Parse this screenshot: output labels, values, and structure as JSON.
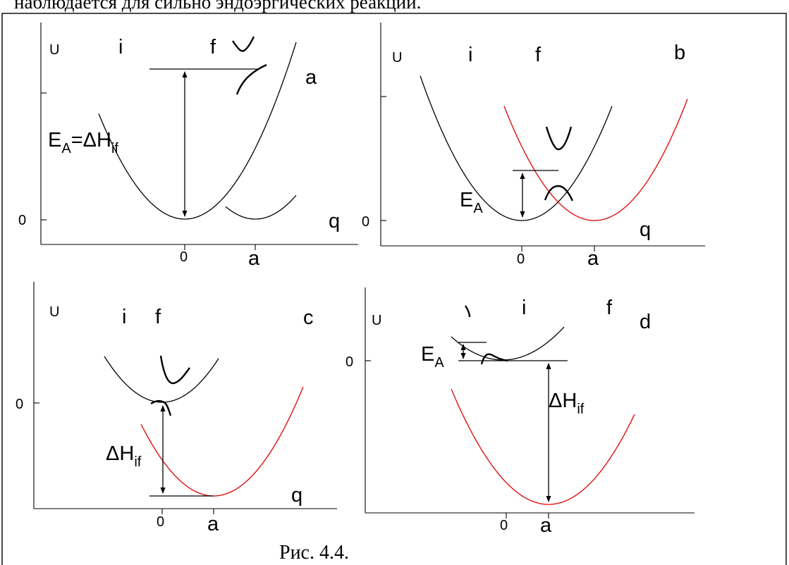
{
  "top_text": "наблюдается для сильно эндоэргических реакций.",
  "caption": "Рис. 4.4.",
  "arrow_color": "#000000",
  "curve_colors": {
    "initial": "#000000",
    "final": "#e00000"
  },
  "panels": [
    {
      "id": "a",
      "panel_label": "a",
      "u_label": "U",
      "curve_label_i": "i",
      "curve_label_f": "f",
      "zero_y_label": "0",
      "zero_x_label": "0",
      "a_x_label": "a",
      "q_label": "q",
      "energy_label": "E",
      "energy_sub": "A",
      "energy_eq": "=ΔH",
      "energy_eq_sub": "if"
    },
    {
      "id": "b",
      "panel_label": "b",
      "u_label": "U",
      "curve_label_i": "i",
      "curve_label_f": "f",
      "zero_y_label": "0",
      "zero_x_label": "0",
      "a_x_label": "a",
      "q_label": "q",
      "energy_label": "E",
      "energy_sub": "A"
    },
    {
      "id": "c",
      "panel_label": "c",
      "u_label": "U",
      "curve_label_i": "i",
      "curve_label_f": "f",
      "zero_y_label": "0",
      "zero_x_label": "0",
      "a_x_label": "a",
      "q_label": "q",
      "delta_label": "ΔH",
      "delta_sub": "if"
    },
    {
      "id": "d",
      "panel_label": "d",
      "u_label": "U",
      "curve_label_i": "i",
      "curve_label_f": "f",
      "zero_y_label": "0",
      "zero_x_label": "0",
      "a_x_label": "a",
      "energy_label": "E",
      "energy_sub": "A",
      "delta_label": "ΔH",
      "delta_sub": "if"
    }
  ]
}
